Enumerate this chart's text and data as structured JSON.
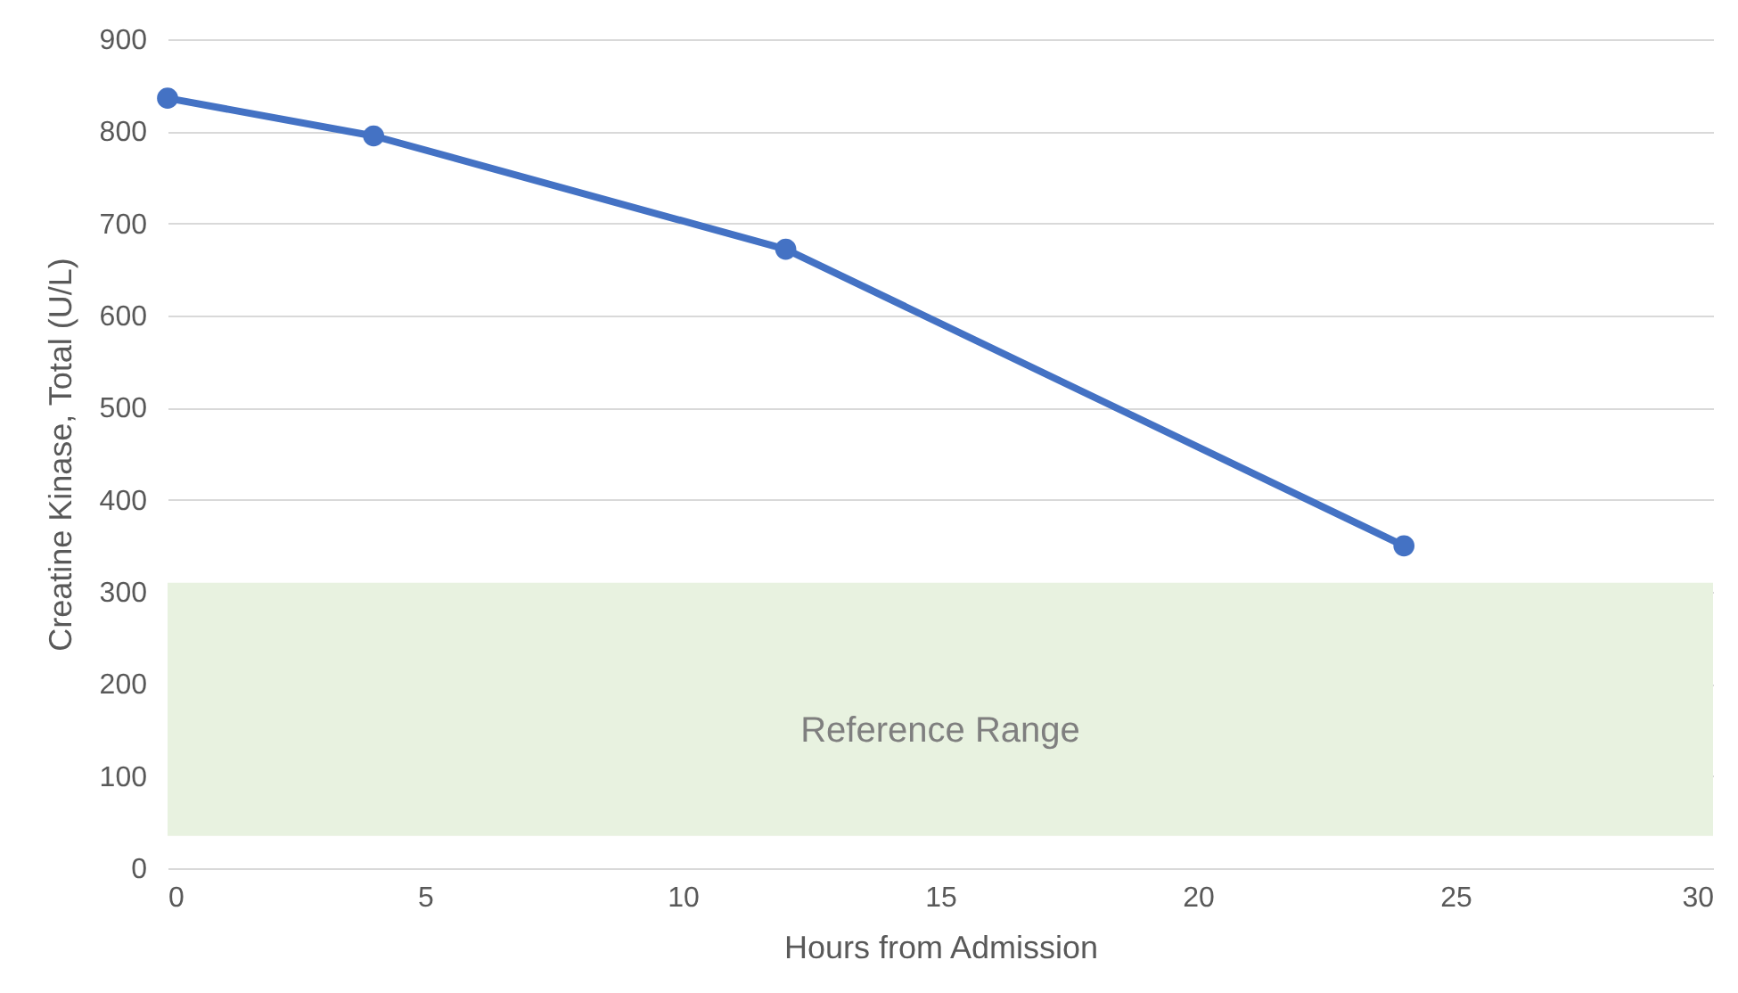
{
  "chart_data": {
    "type": "line",
    "xlabel": "Hours from Admission",
    "ylabel": "Creatine Kinase, Total (U/L)",
    "x": [
      0,
      4,
      12,
      24
    ],
    "series": [
      {
        "color": "#4472c4",
        "values": [
          836,
          795,
          672,
          350
        ]
      }
    ],
    "xlim": [
      0,
      30
    ],
    "xticks": [
      0,
      5,
      10,
      15,
      20,
      25,
      30
    ],
    "ylim": [
      0,
      900
    ],
    "yticks": [
      0,
      100,
      200,
      300,
      400,
      500,
      600,
      700,
      800,
      900
    ],
    "grid": "y",
    "marker": "circle",
    "line_style": "solid",
    "bands": [
      {
        "axis": "y",
        "from": 35,
        "to": 310,
        "label": "Reference Range",
        "color": "#e8f2e0"
      }
    ]
  }
}
